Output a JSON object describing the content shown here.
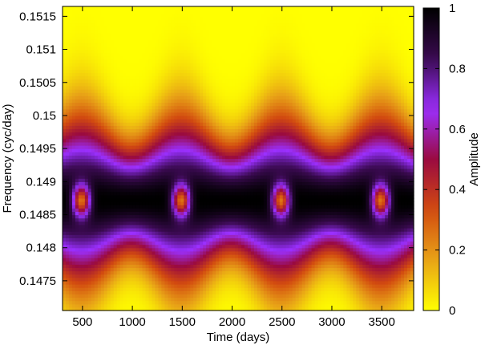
{
  "chart_data": {
    "type": "heatmap",
    "title": "",
    "xlabel": "Time (days)",
    "ylabel": "Frequency (cyc/day)",
    "colorbar_label": "Amplitude",
    "xlim": [
      300,
      3820
    ],
    "ylim": [
      0.14705,
      0.15165
    ],
    "zlim": [
      0,
      1
    ],
    "x_ticks": [
      500,
      1000,
      1500,
      2000,
      2500,
      3000,
      3500
    ],
    "x_tick_labels": [
      "500",
      "1000",
      "1500",
      "2000",
      "2500",
      "3000",
      "3500"
    ],
    "y_ticks": [
      0.1475,
      0.148,
      0.1485,
      0.149,
      0.1495,
      0.15,
      0.1505,
      0.151,
      0.1515
    ],
    "y_tick_labels": [
      "0.1475",
      "0.148",
      "0.1485",
      "0.149",
      "0.1495",
      "0.15",
      "0.1505",
      "0.151",
      "0.1515"
    ],
    "colorbar_ticks": [
      0,
      0.2,
      0.4,
      0.6,
      0.8,
      1
    ],
    "colorbar_tick_labels": [
      "0",
      "0.2",
      "0.4",
      "0.6",
      "0.8",
      "1"
    ],
    "colormap": [
      "#ffff00",
      "#e8a317",
      "#d24a10",
      "#9a0a40",
      "#9b30ff",
      "#3a0a50",
      "#000000"
    ],
    "features": {
      "background_amplitude": 0.0,
      "band_center_frequency": 0.14872,
      "core_centers_time": [
        490,
        1480,
        2490,
        3490
      ],
      "core_frequency": 0.14872,
      "core_amplitude": 0.35,
      "period_days": 1000
    }
  }
}
